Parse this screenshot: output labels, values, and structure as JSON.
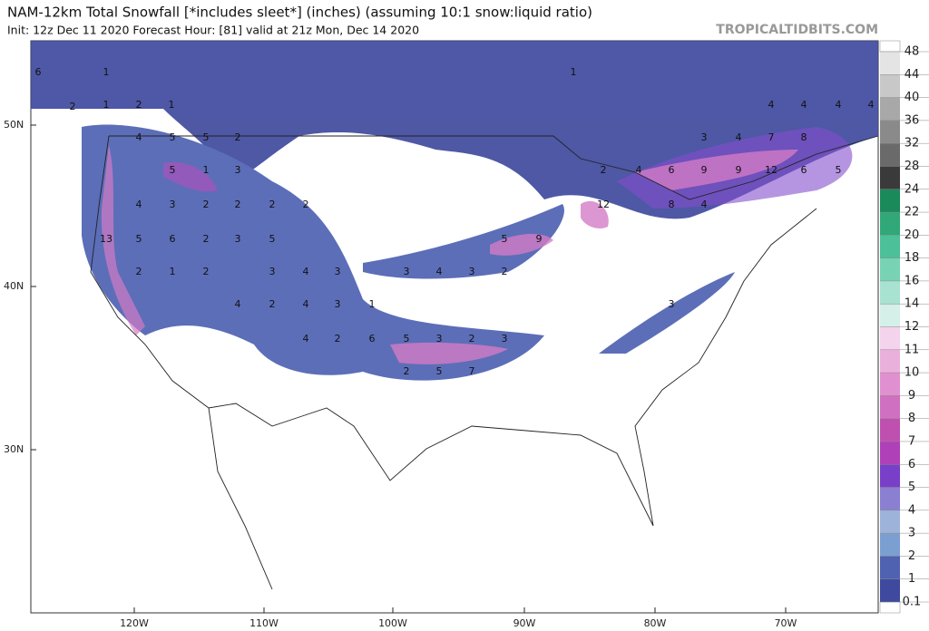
{
  "header": {
    "title": "NAM-12km Total Snowfall [*includes sleet*] (inches) (assuming 10:1 snow:liquid ratio)",
    "subtitle": "Init: 12z Dec 11 2020   Forecast Hour: [81]   valid at 21z Mon, Dec 14 2020",
    "site": "TROPICALTIDBITS.COM"
  },
  "map": {
    "lat_labels": [
      "50N",
      "40N",
      "30N"
    ],
    "lon_labels": [
      "120W",
      "110W",
      "100W",
      "90W",
      "80W",
      "70W"
    ],
    "labels": [
      "6",
      "1",
      "2",
      "1",
      "2",
      "1",
      "4",
      "5",
      "5",
      "2",
      "5",
      "1",
      "3",
      "4",
      "3",
      "2",
      "2",
      "2",
      "2",
      "13",
      "5",
      "6",
      "2",
      "3",
      "5",
      "2",
      "1",
      "2",
      "3",
      "4",
      "3",
      "4",
      "2",
      "4",
      "3",
      "1",
      "4",
      "2",
      "6",
      "5",
      "3",
      "2",
      "3",
      "2",
      "5",
      "7",
      "3",
      "4",
      "3",
      "2",
      "5",
      "9",
      "12",
      "2",
      "4",
      "6",
      "9",
      "9",
      "12",
      "6",
      "5",
      "3",
      "4",
      "7",
      "8",
      "4",
      "4",
      "4",
      "4",
      "1",
      "8",
      "4",
      "3"
    ]
  },
  "colorbar": {
    "labels": [
      "0.1",
      "1",
      "2",
      "3",
      "4",
      "5",
      "6",
      "7",
      "8",
      "9",
      "10",
      "11",
      "12",
      "14",
      "16",
      "18",
      "20",
      "22",
      "24",
      "28",
      "32",
      "36",
      "40",
      "44",
      "48"
    ],
    "colors": [
      "#3f4a9e",
      "#4f62b2",
      "#7b9fd0",
      "#9db3da",
      "#8a7fd0",
      "#7a3fc8",
      "#b040b8",
      "#c050b0",
      "#d070c0",
      "#e090d0",
      "#eab0dc",
      "#f3d4ec",
      "#d4f0e8",
      "#a8e2d0",
      "#78d2b4",
      "#4cc098",
      "#30a878",
      "#1a8a5a",
      "#3a3a3a",
      "#6a6a6a",
      "#8a8a8a",
      "#a8a8a8",
      "#c8c8c8",
      "#e4e4e4"
    ]
  }
}
